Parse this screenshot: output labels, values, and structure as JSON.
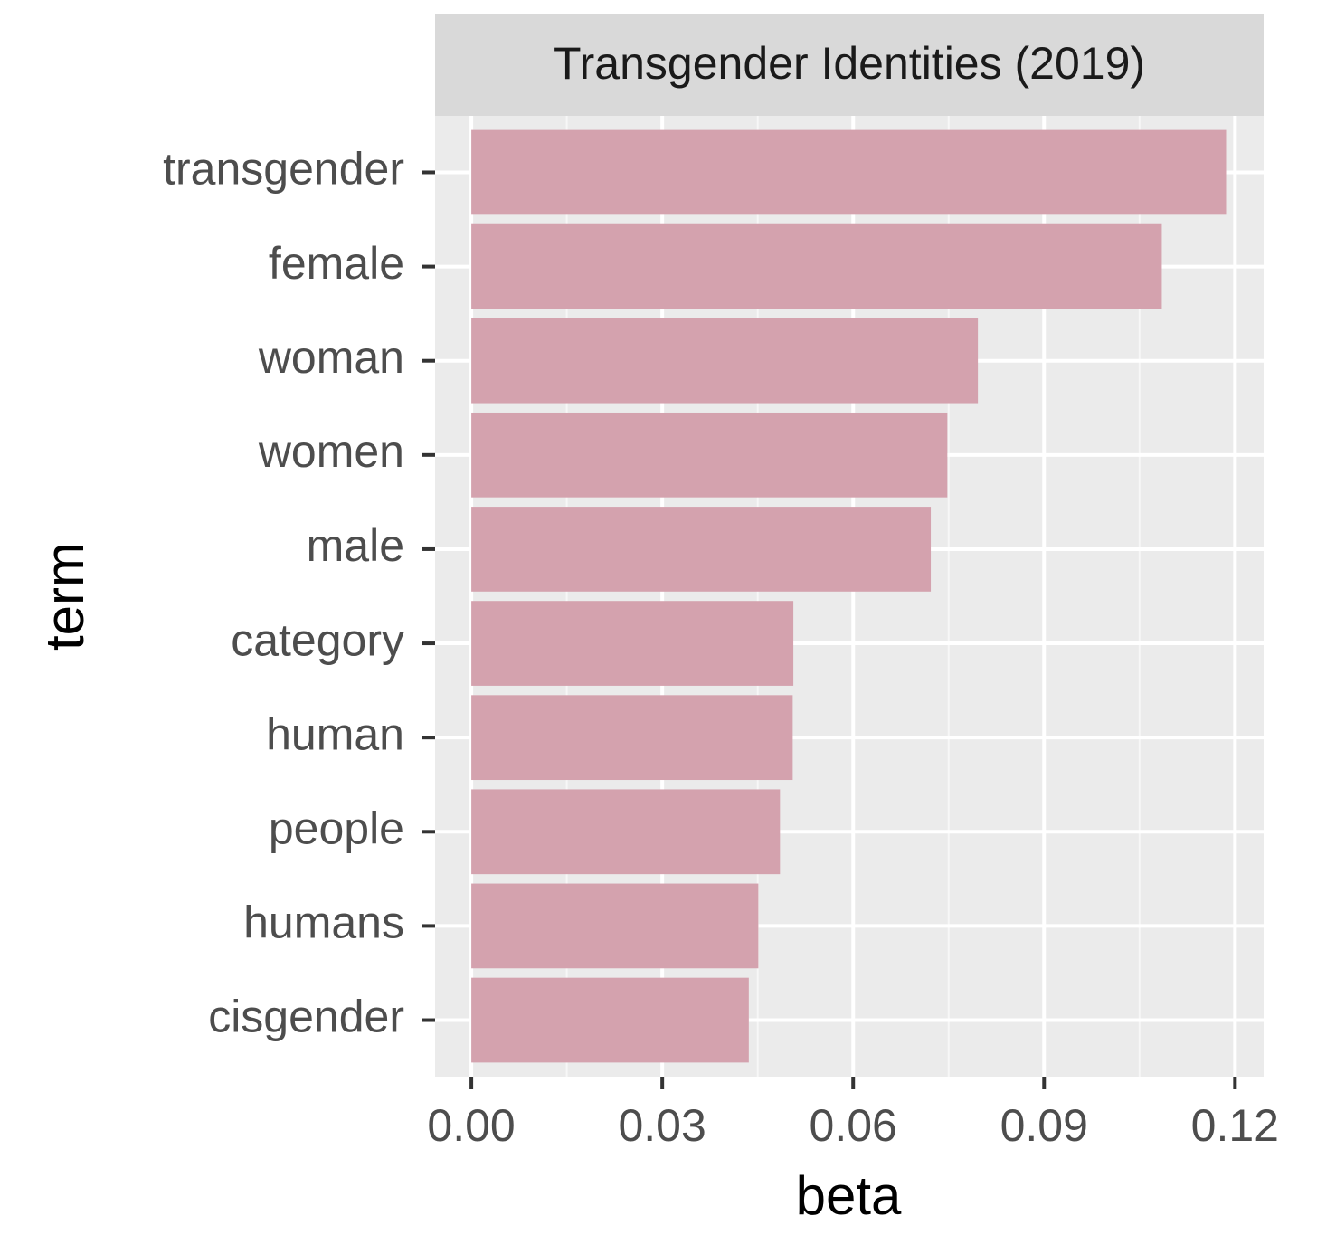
{
  "chart_data": {
    "type": "bar",
    "orientation": "horizontal",
    "title": "Transgender Identities (2019)",
    "xlabel": "beta",
    "ylabel": "term",
    "categories": [
      "transgender",
      "female",
      "woman",
      "women",
      "male",
      "category",
      "human",
      "people",
      "humans",
      "cisgender"
    ],
    "values": [
      0.1186,
      0.1085,
      0.0796,
      0.0748,
      0.0722,
      0.0506,
      0.0505,
      0.0485,
      0.0451,
      0.0436
    ],
    "color": "#d4a2ae",
    "xlim": [
      -0.0057,
      0.1245
    ],
    "xticks": [
      {
        "value": 0,
        "label": "0.00"
      },
      0.03,
      0.06,
      0.09,
      0.12
    ],
    "x_minor_ticks": [
      0.015,
      0.045,
      0.075,
      0.105
    ],
    "grid": true
  }
}
